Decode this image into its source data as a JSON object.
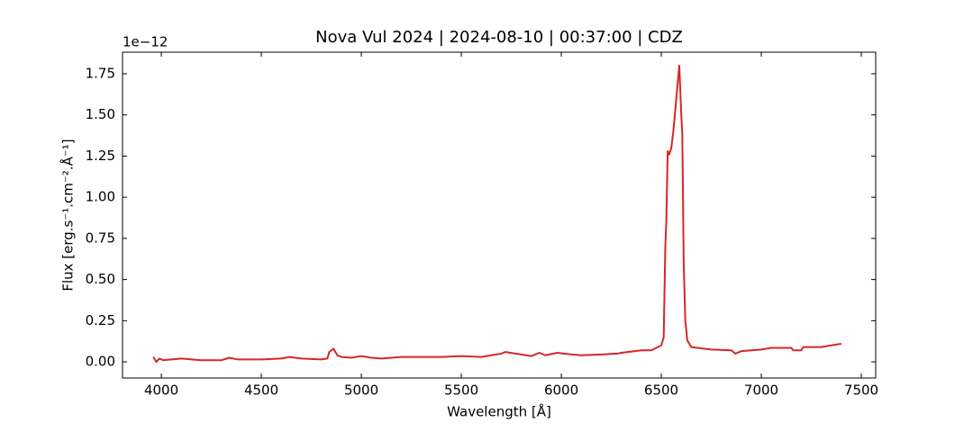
{
  "chart_data": {
    "type": "line",
    "title": "Nova Vul 2024 | 2024-08-10 | 00:37:00 | CDZ",
    "x_label": "Wavelength [Å]",
    "y_label": "Flux [erg.s⁻¹.cm⁻².Å⁻¹]",
    "y_offset_label": "1e−12",
    "x": [
      3960,
      3975,
      3990,
      4010,
      4050,
      4100,
      4200,
      4300,
      4340,
      4380,
      4500,
      4600,
      4640,
      4700,
      4800,
      4830,
      4840,
      4861,
      4880,
      4900,
      4950,
      5000,
      5050,
      5100,
      5200,
      5300,
      5400,
      5500,
      5600,
      5650,
      5700,
      5720,
      5800,
      5850,
      5890,
      5920,
      5980,
      6050,
      6100,
      6200,
      6280,
      6300,
      6400,
      6450,
      6500,
      6512,
      6520,
      6525,
      6532,
      6540,
      6550,
      6560,
      6575,
      6590,
      6600,
      6605,
      6612,
      6620,
      6630,
      6650,
      6680,
      6750,
      6850,
      6870,
      6900,
      7000,
      7050,
      7150,
      7160,
      7200,
      7210,
      7300,
      7350,
      7400
    ],
    "series": [
      {
        "name": "Flux",
        "color": "#d62728",
        "values": [
          0.03,
          0.0,
          0.02,
          0.01,
          0.015,
          0.02,
          0.01,
          0.01,
          0.025,
          0.015,
          0.015,
          0.02,
          0.03,
          0.02,
          0.015,
          0.02,
          0.06,
          0.08,
          0.04,
          0.03,
          0.025,
          0.035,
          0.025,
          0.02,
          0.03,
          0.03,
          0.03,
          0.035,
          0.03,
          0.04,
          0.05,
          0.06,
          0.045,
          0.035,
          0.055,
          0.04,
          0.055,
          0.045,
          0.04,
          0.045,
          0.05,
          0.055,
          0.07,
          0.07,
          0.1,
          0.15,
          0.7,
          0.85,
          1.28,
          1.26,
          1.3,
          1.4,
          1.6,
          1.8,
          1.5,
          1.38,
          0.6,
          0.25,
          0.13,
          0.09,
          0.085,
          0.075,
          0.07,
          0.05,
          0.065,
          0.075,
          0.085,
          0.085,
          0.07,
          0.07,
          0.09,
          0.09,
          0.1,
          0.11
        ]
      }
    ],
    "xlim": [
      3806,
      7572
    ],
    "ylim": [
      -0.098,
      1.881
    ],
    "xticks": [
      4000,
      4500,
      5000,
      5500,
      6000,
      6500,
      7000,
      7500
    ],
    "yticks": [
      {
        "value": 0,
        "label": "0.00"
      },
      {
        "value": 0.25,
        "label": "0.25"
      },
      {
        "value": 0.5,
        "label": "0.50"
      },
      {
        "value": 0.75,
        "label": "0.75"
      },
      {
        "value": 1,
        "label": "1.00"
      },
      {
        "value": 1.25,
        "label": "1.25"
      },
      {
        "value": 1.5,
        "label": "1.50"
      },
      {
        "value": 1.75,
        "label": "1.75"
      }
    ],
    "grid": false
  }
}
